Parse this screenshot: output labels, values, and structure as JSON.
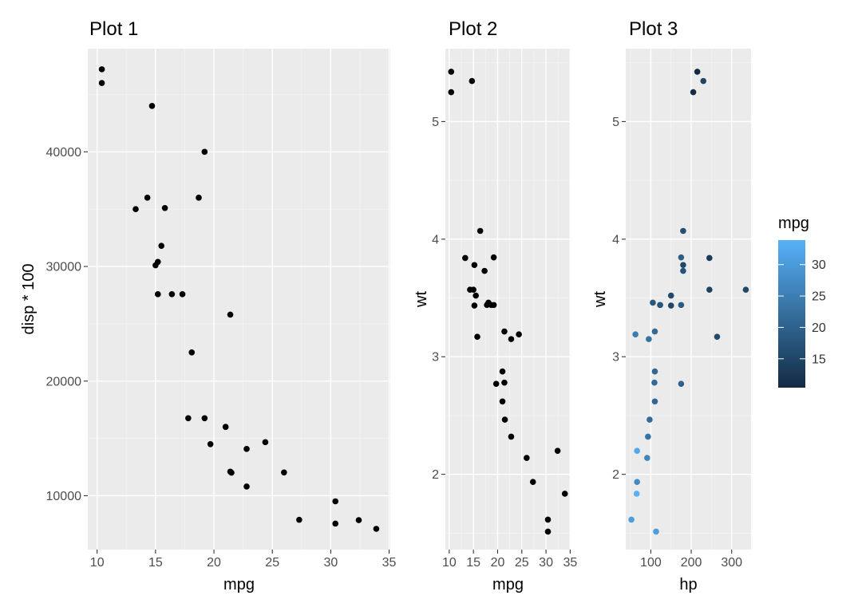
{
  "chart_data": [
    {
      "type": "scatter",
      "title": "Plot 1",
      "xlabel": "mpg",
      "ylabel": "disp * 100",
      "xlim": [
        9.2,
        35.1
      ],
      "ylim": [
        5300,
        49000
      ],
      "xticks": [
        10,
        15,
        20,
        25,
        30,
        35
      ],
      "yticks": [
        10000,
        20000,
        30000,
        40000
      ],
      "xtick_labels": [
        "10",
        "15",
        "20",
        "25",
        "30",
        "35"
      ],
      "ytick_labels": [
        "10000",
        "20000",
        "30000",
        "40000"
      ],
      "grid": true,
      "point_color": "#000000",
      "points": [
        [
          21.0,
          16000
        ],
        [
          21.0,
          16000
        ],
        [
          22.8,
          10800
        ],
        [
          21.4,
          25800
        ],
        [
          18.7,
          36000
        ],
        [
          18.1,
          22500
        ],
        [
          14.3,
          36000
        ],
        [
          24.4,
          14670
        ],
        [
          22.8,
          14080
        ],
        [
          19.2,
          16760
        ],
        [
          17.8,
          16760
        ],
        [
          16.4,
          27580
        ],
        [
          17.3,
          27580
        ],
        [
          15.2,
          27580
        ],
        [
          10.4,
          47200
        ],
        [
          10.4,
          46000
        ],
        [
          14.7,
          44000
        ],
        [
          32.4,
          7870
        ],
        [
          30.4,
          7570
        ],
        [
          33.9,
          7110
        ],
        [
          21.5,
          12010
        ],
        [
          15.5,
          31800
        ],
        [
          15.2,
          30400
        ],
        [
          13.3,
          35000
        ],
        [
          19.2,
          40000
        ],
        [
          27.3,
          7900
        ],
        [
          26.0,
          12030
        ],
        [
          30.4,
          9510
        ],
        [
          15.8,
          35100
        ],
        [
          19.7,
          14500
        ],
        [
          15.0,
          30100
        ],
        [
          21.4,
          12100
        ]
      ]
    },
    {
      "type": "scatter",
      "title": "Plot 2",
      "xlabel": "mpg",
      "ylabel": "wt",
      "xlim": [
        9.2,
        35.1
      ],
      "ylim": [
        1.36,
        5.62
      ],
      "xticks": [
        10,
        15,
        20,
        25,
        30,
        35
      ],
      "yticks": [
        2,
        3,
        4,
        5
      ],
      "xtick_labels": [
        "10",
        "15",
        "20",
        "25",
        "30",
        "35"
      ],
      "ytick_labels": [
        "2",
        "3",
        "4",
        "5"
      ],
      "grid": true,
      "point_color": "#000000",
      "points": [
        [
          21.0,
          2.62
        ],
        [
          21.0,
          2.875
        ],
        [
          22.8,
          2.32
        ],
        [
          21.4,
          3.215
        ],
        [
          18.7,
          3.44
        ],
        [
          18.1,
          3.46
        ],
        [
          14.3,
          3.57
        ],
        [
          24.4,
          3.19
        ],
        [
          22.8,
          3.15
        ],
        [
          19.2,
          3.44
        ],
        [
          17.8,
          3.44
        ],
        [
          16.4,
          4.07
        ],
        [
          17.3,
          3.73
        ],
        [
          15.2,
          3.78
        ],
        [
          10.4,
          5.25
        ],
        [
          10.4,
          5.424
        ],
        [
          14.7,
          5.345
        ],
        [
          32.4,
          2.2
        ],
        [
          30.4,
          1.615
        ],
        [
          33.9,
          1.835
        ],
        [
          21.5,
          2.465
        ],
        [
          15.5,
          3.52
        ],
        [
          15.2,
          3.435
        ],
        [
          13.3,
          3.84
        ],
        [
          19.2,
          3.845
        ],
        [
          27.3,
          1.935
        ],
        [
          26.0,
          2.14
        ],
        [
          30.4,
          1.513
        ],
        [
          15.8,
          3.17
        ],
        [
          19.7,
          2.77
        ],
        [
          15.0,
          3.57
        ],
        [
          21.4,
          2.78
        ]
      ]
    },
    {
      "type": "scatter",
      "title": "Plot 3",
      "xlabel": "hp",
      "ylabel": "wt",
      "xlim": [
        38,
        348
      ],
      "ylim": [
        1.36,
        5.62
      ],
      "xticks": [
        100,
        200,
        300
      ],
      "yticks": [
        2,
        3,
        4,
        5
      ],
      "xtick_labels": [
        "100",
        "200",
        "300"
      ],
      "ytick_labels": [
        "2",
        "3",
        "4",
        "5"
      ],
      "grid": true,
      "color_by": "mpg",
      "points": [
        [
          110,
          2.62,
          21.0
        ],
        [
          110,
          2.875,
          21.0
        ],
        [
          93,
          2.32,
          22.8
        ],
        [
          110,
          3.215,
          21.4
        ],
        [
          175,
          3.44,
          18.7
        ],
        [
          105,
          3.46,
          18.1
        ],
        [
          245,
          3.57,
          14.3
        ],
        [
          62,
          3.19,
          24.4
        ],
        [
          95,
          3.15,
          22.8
        ],
        [
          123,
          3.44,
          19.2
        ],
        [
          123,
          3.44,
          17.8
        ],
        [
          180,
          4.07,
          16.4
        ],
        [
          180,
          3.73,
          17.3
        ],
        [
          180,
          3.78,
          15.2
        ],
        [
          205,
          5.25,
          10.4
        ],
        [
          215,
          5.424,
          10.4
        ],
        [
          230,
          5.345,
          14.7
        ],
        [
          66,
          2.2,
          32.4
        ],
        [
          52,
          1.615,
          30.4
        ],
        [
          65,
          1.835,
          33.9
        ],
        [
          97,
          2.465,
          21.5
        ],
        [
          150,
          3.52,
          15.5
        ],
        [
          150,
          3.435,
          15.2
        ],
        [
          245,
          3.84,
          13.3
        ],
        [
          175,
          3.845,
          19.2
        ],
        [
          66,
          1.935,
          27.3
        ],
        [
          91,
          2.14,
          26.0
        ],
        [
          113,
          1.513,
          30.4
        ],
        [
          264,
          3.17,
          15.8
        ],
        [
          175,
          2.77,
          19.7
        ],
        [
          335,
          3.57,
          15.0
        ],
        [
          109,
          2.78,
          21.4
        ]
      ]
    }
  ],
  "legend": {
    "title": "mpg",
    "range": [
      10.4,
      33.9
    ],
    "ticks": [
      15,
      20,
      25,
      30
    ],
    "tick_labels": [
      "15",
      "20",
      "25",
      "30"
    ],
    "low_color": "#132b43",
    "high_color": "#56b1f7",
    "placement": "right"
  }
}
